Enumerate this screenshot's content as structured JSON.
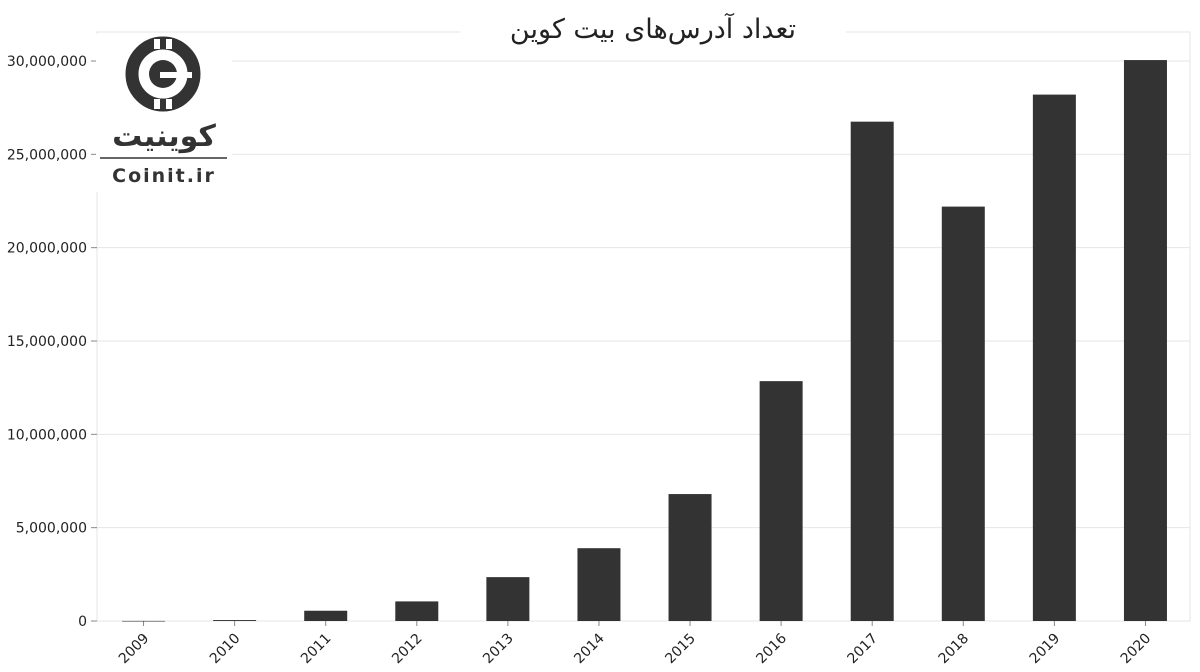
{
  "chart_data": {
    "type": "bar",
    "title": "تعداد آدرس‌های بیت کوین",
    "categories": [
      "2009",
      "2010",
      "2011",
      "2012",
      "2013",
      "2014",
      "2015",
      "2016",
      "2017",
      "2018",
      "2019",
      "2020"
    ],
    "values": [
      5000,
      50000,
      550000,
      1050000,
      2350000,
      3900000,
      6800000,
      12850000,
      26750000,
      22200000,
      28200000,
      30050000
    ],
    "ylim": [
      0,
      30000000
    ],
    "yticks": [
      0,
      5000000,
      10000000,
      15000000,
      20000000,
      25000000,
      30000000
    ],
    "ytick_labels": [
      "0",
      "5,000,000",
      "10,000,000",
      "15,000,000",
      "20,000,000",
      "25,000,000",
      "30,000,000"
    ],
    "xlabel": "",
    "ylabel": "",
    "grid": true,
    "bar_color": "#333333",
    "grid_color": "#e6e6e6"
  },
  "logo": {
    "persian_name": "کوینیت",
    "latin_name": "Coinit.ir",
    "icon": "coinit-coin-icon",
    "color": "#333333"
  }
}
